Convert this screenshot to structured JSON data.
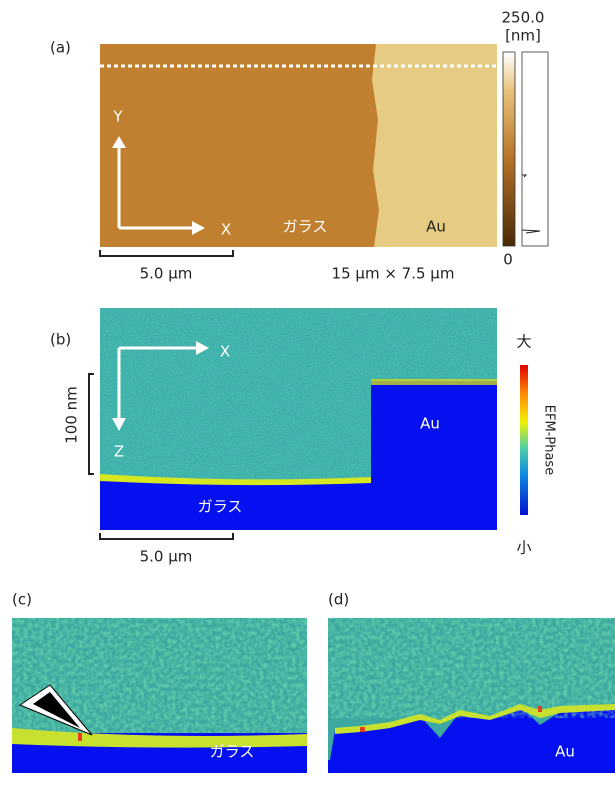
{
  "panel_a": {
    "label": "(a)",
    "scale_max": "250.0",
    "scale_unit": "[nm]",
    "scale_min": "0",
    "axis_y": "Y",
    "axis_x": "X",
    "glass": "ガラス",
    "gold": "Au",
    "scale_bar": "5.0 µm",
    "size": "15 µm × 7.5 µm"
  },
  "panel_b": {
    "label": "(b)",
    "axis_x": "X",
    "axis_z": "Z",
    "depth": "100 nm",
    "gold": "Au",
    "glass": "ガラス",
    "scale_high": "大",
    "scale_low": "小",
    "scale_title": "EFM-Phase",
    "scale_bar": "5.0 µm"
  },
  "panel_c": {
    "label": "(c)",
    "glass": "ガラス"
  },
  "panel_d": {
    "label": "(d)",
    "gold": "Au"
  }
}
